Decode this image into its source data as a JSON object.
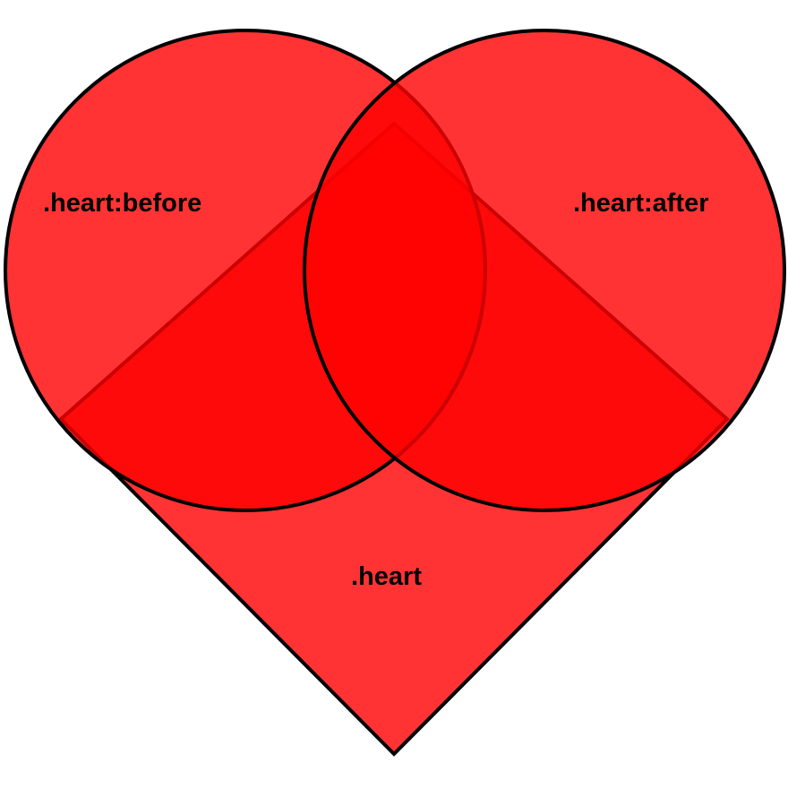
{
  "diagram": {
    "labels": {
      "before": ".heart:before",
      "after": ".heart:after",
      "heart": ".heart"
    },
    "colors": {
      "fill": "#ff0000",
      "stroke": "#000000",
      "background": "#ffffff"
    }
  }
}
